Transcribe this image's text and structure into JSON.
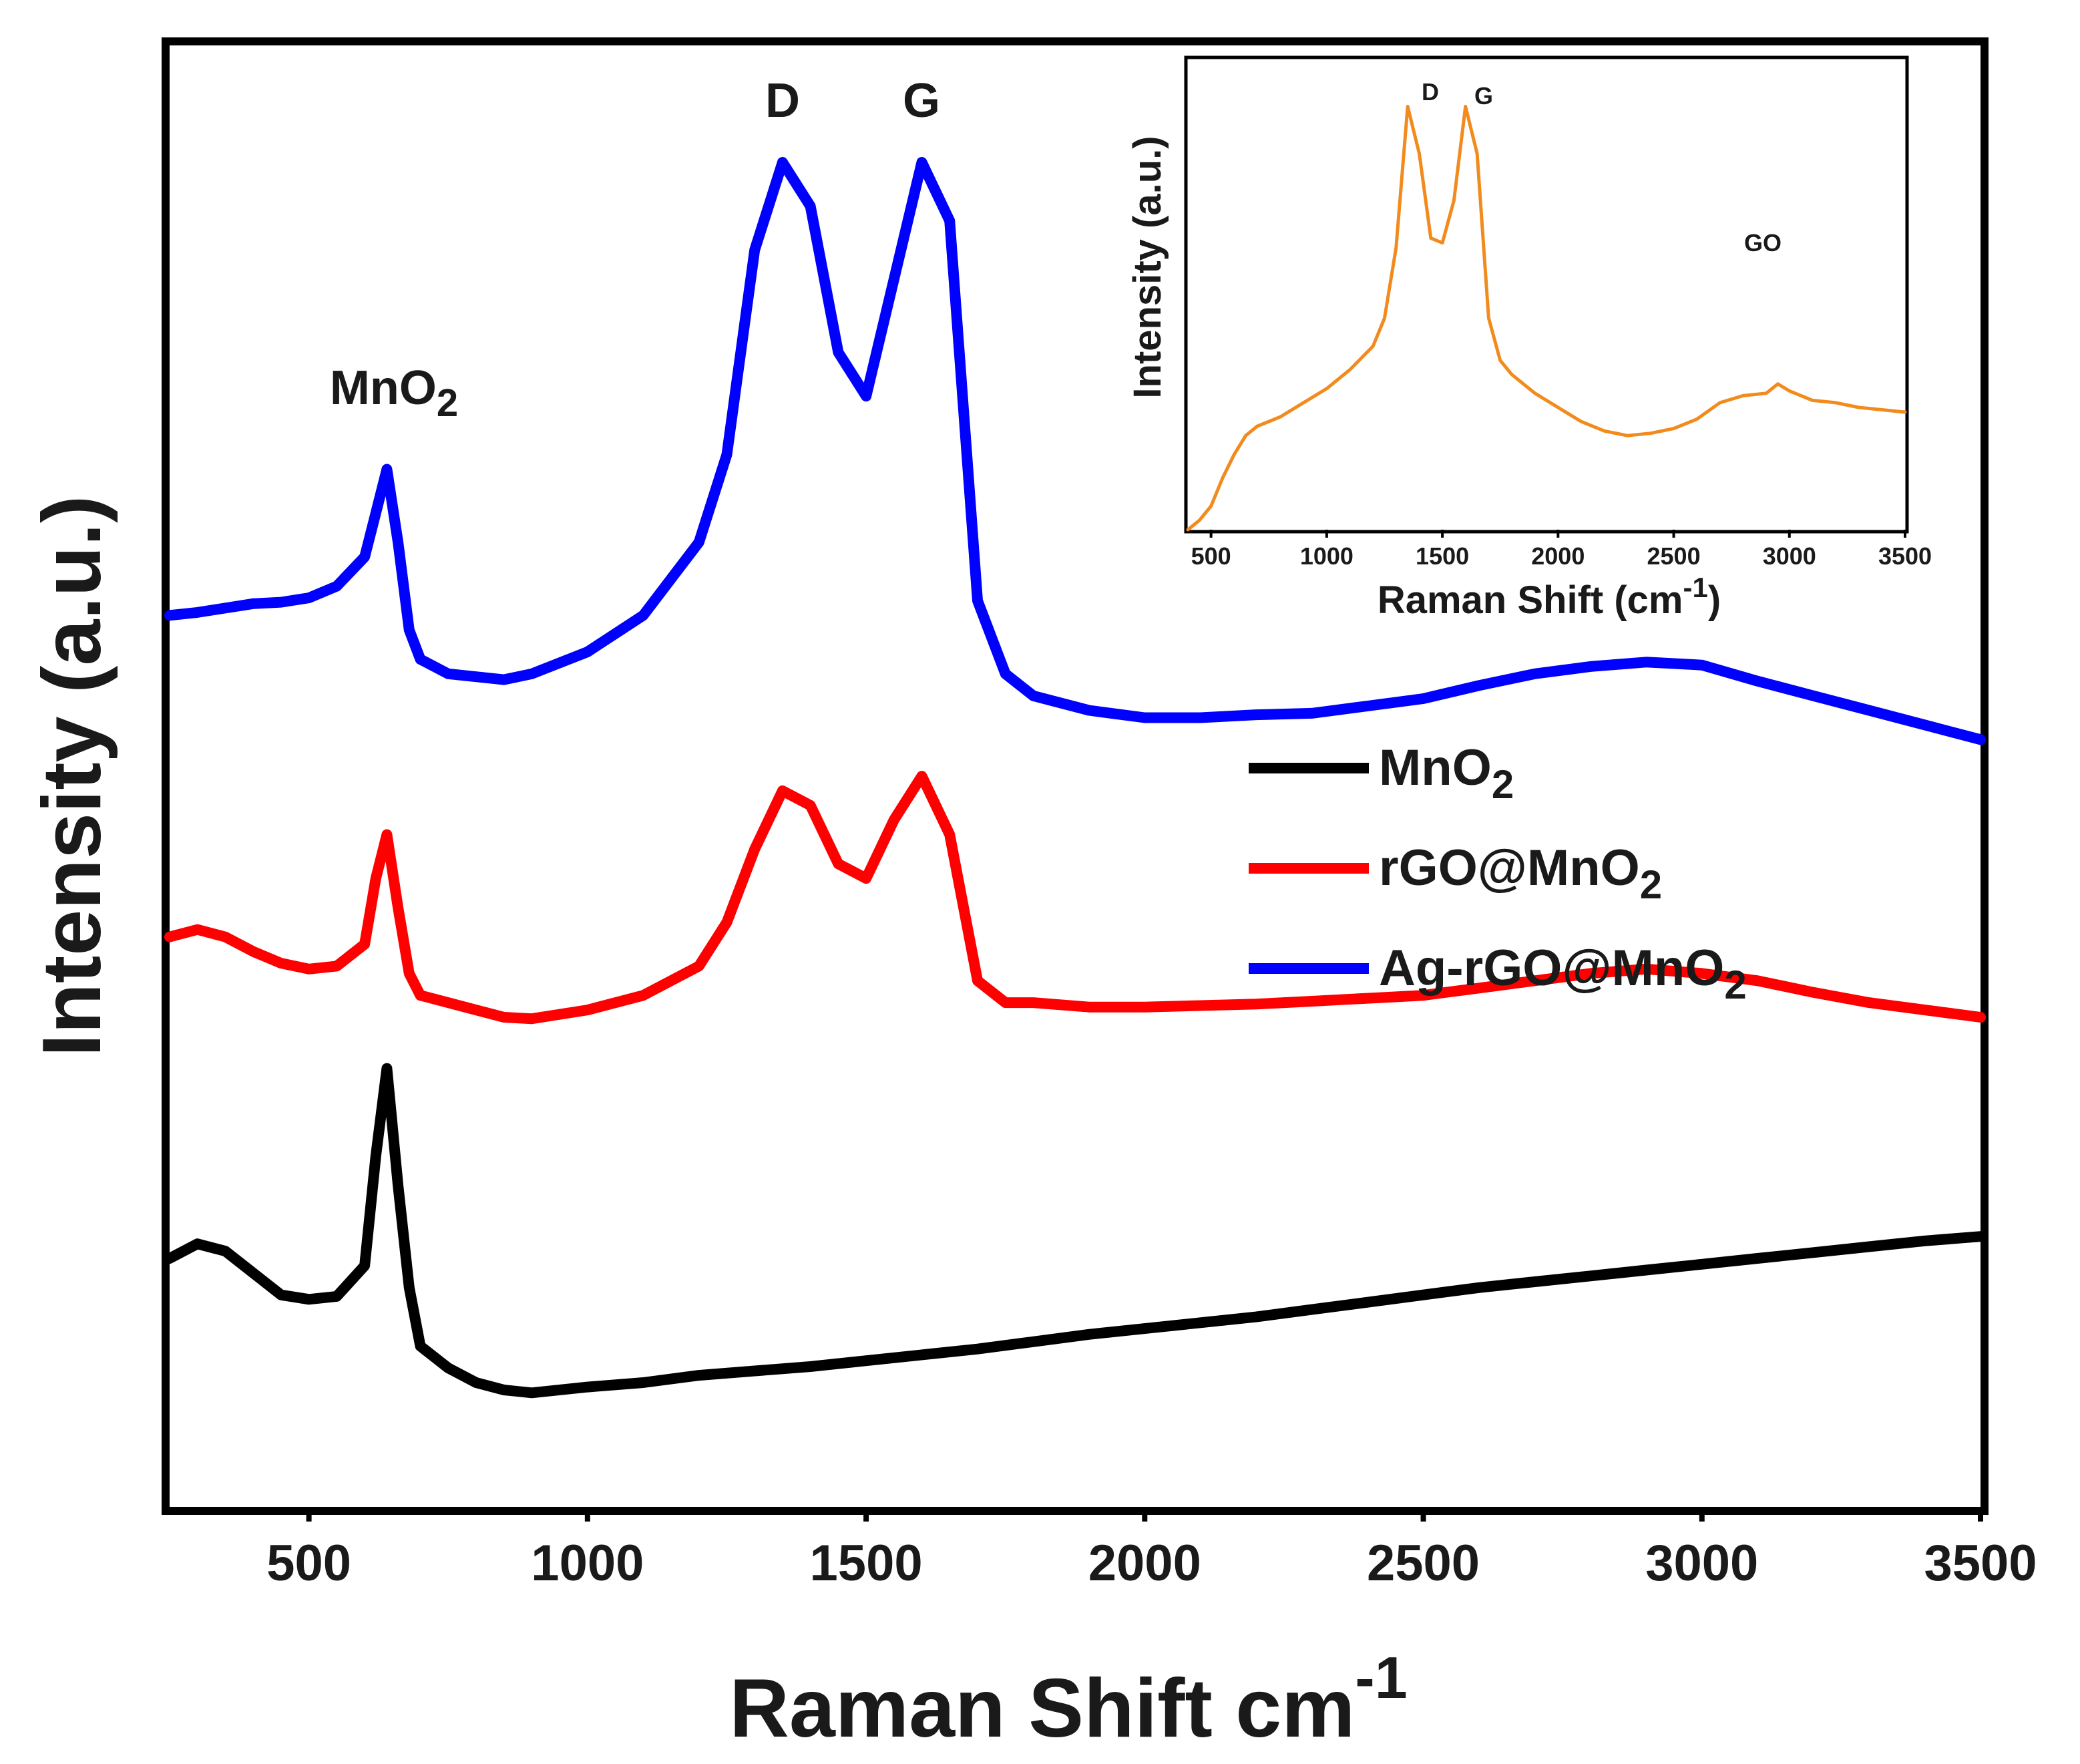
{
  "chart_data": {
    "type": "line",
    "title": "",
    "xlabel": "Raman Shift cm",
    "xlabel_superscript": "-1",
    "ylabel": "Intensity (a.u.)",
    "xlim": [
      250,
      3500
    ],
    "ylim": [
      0,
      100
    ],
    "xticks": [
      500,
      1000,
      1500,
      2000,
      2500,
      3000,
      3500
    ],
    "yticks_shown": false,
    "legend_position": "center-right",
    "annotations": [
      {
        "text": "MnO",
        "sub": "2",
        "x": 630,
        "y": 73
      },
      {
        "text": "D",
        "x": 1350,
        "y": 96
      },
      {
        "text": "G",
        "x": 1600,
        "y": 96
      }
    ],
    "series": [
      {
        "name": "MnO",
        "name_sub": "2",
        "color": "#000000",
        "x": [
          250,
          300,
          350,
          400,
          450,
          500,
          550,
          600,
          620,
          640,
          660,
          680,
          700,
          750,
          800,
          850,
          900,
          1000,
          1100,
          1200,
          1300,
          1400,
          1500,
          1600,
          1700,
          1800,
          1900,
          2000,
          2100,
          2200,
          2300,
          2400,
          2500,
          2600,
          2700,
          2800,
          2900,
          3000,
          3100,
          3200,
          3300,
          3400,
          3500
        ],
        "values": [
          17,
          18,
          17.5,
          16,
          14.5,
          14.2,
          14.4,
          16.5,
          24,
          30,
          22,
          15,
          11,
          9.5,
          8.5,
          8,
          7.8,
          8.2,
          8.5,
          9,
          9.3,
          9.6,
          10,
          10.4,
          10.8,
          11.3,
          11.8,
          12.2,
          12.6,
          13,
          13.5,
          14,
          14.5,
          15,
          15.4,
          15.8,
          16.2,
          16.6,
          17,
          17.4,
          17.8,
          18.2,
          18.5
        ]
      },
      {
        "name": "rGO@MnO",
        "name_sub": "2",
        "color": "#ff0000",
        "x": [
          250,
          300,
          350,
          400,
          450,
          500,
          550,
          600,
          620,
          640,
          660,
          680,
          700,
          750,
          800,
          850,
          900,
          1000,
          1100,
          1200,
          1250,
          1300,
          1350,
          1400,
          1450,
          1500,
          1550,
          1600,
          1650,
          1700,
          1750,
          1800,
          1900,
          2000,
          2100,
          2200,
          2300,
          2400,
          2500,
          2600,
          2700,
          2800,
          2900,
          3000,
          3100,
          3200,
          3300,
          3400,
          3500
        ],
        "values": [
          39,
          39.5,
          39,
          38,
          37.2,
          36.8,
          37,
          38.5,
          43,
          46,
          41,
          36.5,
          35,
          34.5,
          34,
          33.5,
          33.4,
          34,
          35,
          37,
          40,
          45,
          49,
          48,
          44,
          43,
          47,
          50,
          46,
          36,
          34.5,
          34.5,
          34.2,
          34.2,
          34.3,
          34.4,
          34.6,
          34.8,
          35,
          35.5,
          36,
          36.5,
          36.8,
          36.5,
          36,
          35.2,
          34.5,
          34,
          33.5
        ]
      },
      {
        "name": "Ag-rGO@MnO",
        "name_sub": "2",
        "color": "#0000ff",
        "x": [
          250,
          300,
          350,
          400,
          450,
          500,
          550,
          600,
          620,
          640,
          660,
          680,
          700,
          750,
          800,
          850,
          900,
          1000,
          1100,
          1200,
          1250,
          1300,
          1350,
          1400,
          1450,
          1500,
          1550,
          1600,
          1650,
          1700,
          1750,
          1800,
          1900,
          2000,
          2100,
          2200,
          2300,
          2400,
          2500,
          2600,
          2700,
          2800,
          2900,
          3000,
          3100,
          3200,
          3300,
          3400,
          3500
        ],
        "values": [
          61,
          61.2,
          61.5,
          61.8,
          61.9,
          62.2,
          63,
          65,
          68,
          71,
          66,
          60,
          58,
          57,
          56.8,
          56.6,
          57,
          58.5,
          61,
          66,
          72,
          86,
          92,
          89,
          79,
          76,
          84,
          92,
          88,
          62,
          57,
          55.5,
          54.5,
          54,
          54,
          54.2,
          54.3,
          54.8,
          55.3,
          56.2,
          57,
          57.5,
          57.8,
          57.6,
          56.5,
          55.5,
          54.5,
          53.5,
          52.5
        ]
      }
    ],
    "inset": {
      "type": "line",
      "xlabel": "Raman Shift (cm",
      "xlabel_superscript": "-1",
      "xlabel_close": ")",
      "ylabel": "Intensity (a.u.)",
      "xlim": [
        400,
        3500
      ],
      "ylim": [
        0,
        100
      ],
      "xticks": [
        500,
        1000,
        1500,
        2000,
        2500,
        3000,
        3500
      ],
      "annotations": [
        {
          "text": "D",
          "x": 1350,
          "y": 96
        },
        {
          "text": "G",
          "x": 1600,
          "y": 96
        },
        {
          "text": "GO",
          "x": 2880,
          "y": 58
        }
      ],
      "series": [
        {
          "name": "GO",
          "color": "#f28b1e",
          "x": [
            400,
            450,
            500,
            550,
            600,
            650,
            700,
            750,
            800,
            900,
            1000,
            1100,
            1200,
            1250,
            1300,
            1350,
            1400,
            1450,
            1500,
            1550,
            1600,
            1650,
            1700,
            1750,
            1800,
            1900,
            2000,
            2100,
            2200,
            2300,
            2400,
            2500,
            2600,
            2700,
            2800,
            2900,
            2950,
            3000,
            3100,
            3200,
            3300,
            3400,
            3500
          ],
          "values": [
            0,
            2,
            5,
            11,
            16,
            20,
            22,
            23,
            24,
            27,
            30,
            34,
            39,
            45,
            60,
            90,
            80,
            62,
            61,
            70,
            90,
            80,
            45,
            36,
            33,
            29,
            26,
            23,
            21,
            20,
            20.5,
            21.5,
            23.5,
            27,
            28.5,
            29,
            31,
            29.5,
            27.5,
            27,
            26,
            25.5,
            25
          ]
        }
      ]
    }
  }
}
